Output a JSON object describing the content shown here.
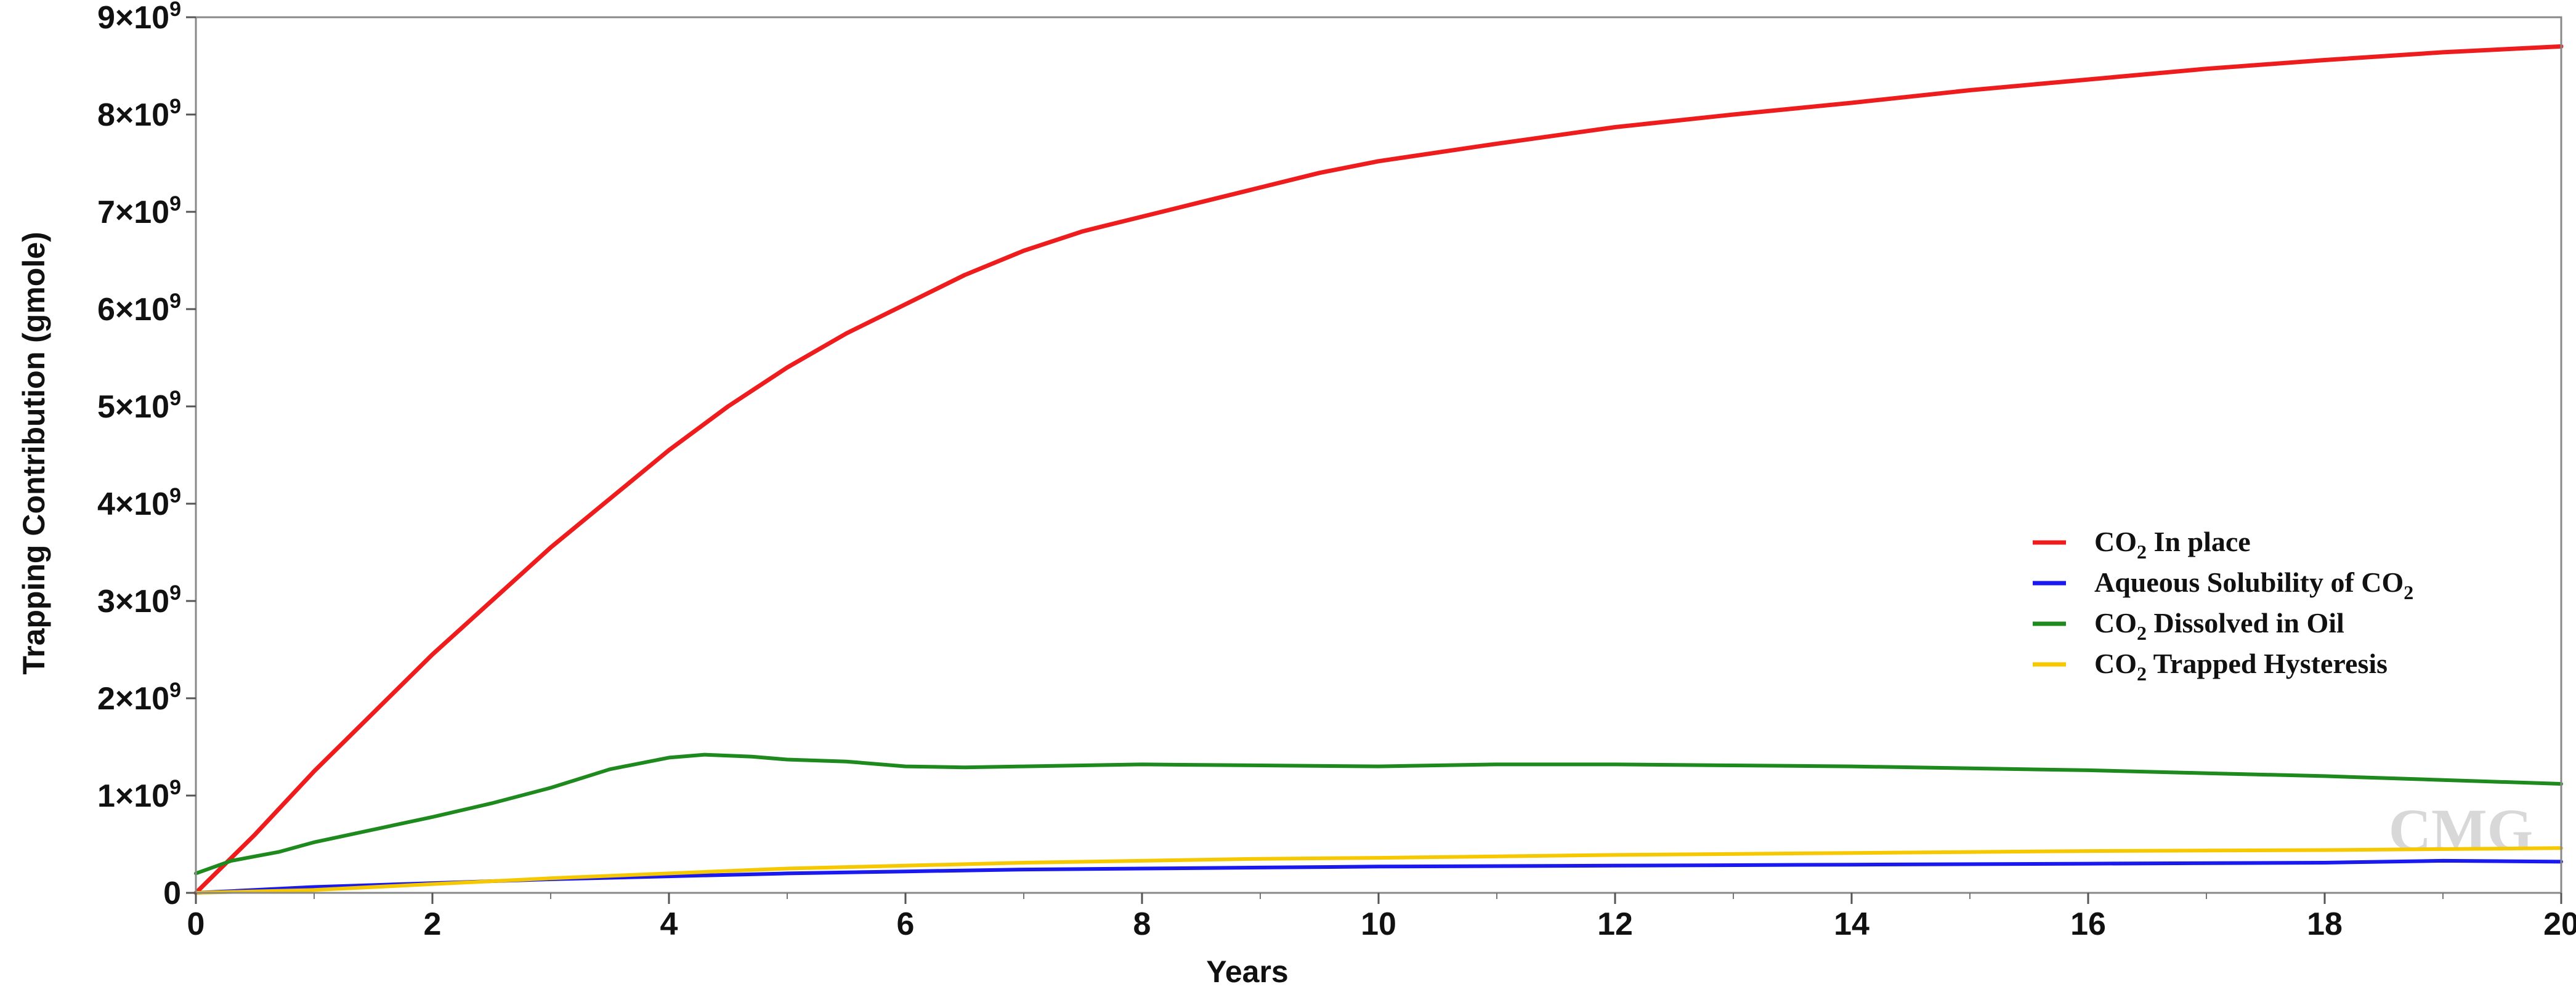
{
  "chart_data": {
    "type": "line",
    "title": "",
    "xlabel": "Years",
    "ylabel": "Trapping Contribution (gmole)",
    "xlim": [
      0,
      20
    ],
    "ylim": [
      0,
      9000000000
    ],
    "x_ticks": [
      {
        "value": 0,
        "label": "0"
      },
      {
        "value": 2,
        "label": "2"
      },
      {
        "value": 4,
        "label": "4"
      },
      {
        "value": 6,
        "label": "6"
      },
      {
        "value": 8,
        "label": "8"
      },
      {
        "value": 10,
        "label": "10"
      },
      {
        "value": 12,
        "label": "12"
      },
      {
        "value": 14,
        "label": "14"
      },
      {
        "value": 16,
        "label": "16"
      },
      {
        "value": 18,
        "label": "18"
      },
      {
        "value": 20,
        "label": "20"
      }
    ],
    "y_ticks": [
      {
        "value": 0,
        "label": "0"
      },
      {
        "value": 1000000000,
        "label": "1×10",
        "exp": "9"
      },
      {
        "value": 2000000000,
        "label": "2×10",
        "exp": "9"
      },
      {
        "value": 3000000000,
        "label": "3×10",
        "exp": "9"
      },
      {
        "value": 4000000000,
        "label": "4×10",
        "exp": "9"
      },
      {
        "value": 5000000000,
        "label": "5×10",
        "exp": "9"
      },
      {
        "value": 6000000000,
        "label": "6×10",
        "exp": "9"
      },
      {
        "value": 7000000000,
        "label": "7×10",
        "exp": "9"
      },
      {
        "value": 8000000000,
        "label": "8×10",
        "exp": "9"
      },
      {
        "value": 9000000000,
        "label": "9×10",
        "exp": "9"
      }
    ],
    "grid": false,
    "legend_position": "right",
    "watermark": "CMG",
    "series": [
      {
        "name": "CO2 In place",
        "legend": {
          "pre": "CO",
          "sub": "2",
          "post": " In place"
        },
        "color": "#ee1c1c",
        "x": [
          0,
          0.5,
          1,
          1.5,
          2,
          2.5,
          3,
          3.5,
          4,
          4.5,
          5,
          5.5,
          6,
          6.5,
          7,
          7.5,
          8,
          8.5,
          9,
          9.5,
          10,
          11,
          12,
          13,
          14,
          15,
          16,
          17,
          18,
          19,
          20
        ],
        "y": [
          0,
          600000000,
          1250000000,
          1850000000,
          2450000000,
          3000000000,
          3550000000,
          4050000000,
          4550000000,
          5000000000,
          5400000000,
          5750000000,
          6050000000,
          6350000000,
          6600000000,
          6800000000,
          6950000000,
          7100000000,
          7250000000,
          7400000000,
          7520000000,
          7700000000,
          7870000000,
          8000000000,
          8120000000,
          8250000000,
          8360000000,
          8470000000,
          8560000000,
          8640000000,
          8700000000
        ]
      },
      {
        "name": "Aqueous Solubility of CO2",
        "legend": {
          "pre": "Aqueous Solubility of CO",
          "sub": "2",
          "post": ""
        },
        "color": "#1a1aee",
        "x": [
          0,
          1,
          2,
          3,
          4,
          5,
          6,
          7,
          8,
          9,
          10,
          12,
          14,
          16,
          18,
          19,
          20
        ],
        "y": [
          0,
          60000000,
          100000000,
          140000000,
          170000000,
          200000000,
          220000000,
          240000000,
          250000000,
          260000000,
          270000000,
          280000000,
          290000000,
          300000000,
          310000000,
          330000000,
          320000000
        ]
      },
      {
        "name": "CO2 Dissolved in Oil",
        "legend": {
          "pre": "CO",
          "sub": "2",
          "post": " Dissolved in Oil"
        },
        "color": "#1e8a1e",
        "x": [
          0,
          0.3,
          0.7,
          1,
          1.5,
          2,
          2.5,
          3,
          3.5,
          4,
          4.3,
          4.7,
          5,
          5.5,
          6,
          6.5,
          7,
          8,
          9,
          10,
          11,
          12,
          13,
          14,
          15,
          16,
          17,
          18,
          19,
          20
        ],
        "y": [
          200000000,
          330000000,
          420000000,
          520000000,
          650000000,
          780000000,
          920000000,
          1080000000,
          1270000000,
          1390000000,
          1420000000,
          1400000000,
          1370000000,
          1350000000,
          1300000000,
          1290000000,
          1300000000,
          1320000000,
          1310000000,
          1300000000,
          1320000000,
          1320000000,
          1310000000,
          1300000000,
          1280000000,
          1260000000,
          1230000000,
          1200000000,
          1160000000,
          1120000000
        ]
      },
      {
        "name": "CO2 Trapped Hysteresis",
        "legend": {
          "pre": "CO",
          "sub": "2",
          "post": " Trapped Hysteresis"
        },
        "color": "#f5c800",
        "x": [
          0,
          1,
          2,
          3,
          4,
          5,
          6,
          7,
          8,
          9,
          10,
          12,
          14,
          16,
          18,
          20
        ],
        "y": [
          0,
          30000000,
          90000000,
          150000000,
          200000000,
          250000000,
          280000000,
          310000000,
          330000000,
          350000000,
          360000000,
          390000000,
          410000000,
          430000000,
          440000000,
          460000000
        ]
      }
    ]
  }
}
